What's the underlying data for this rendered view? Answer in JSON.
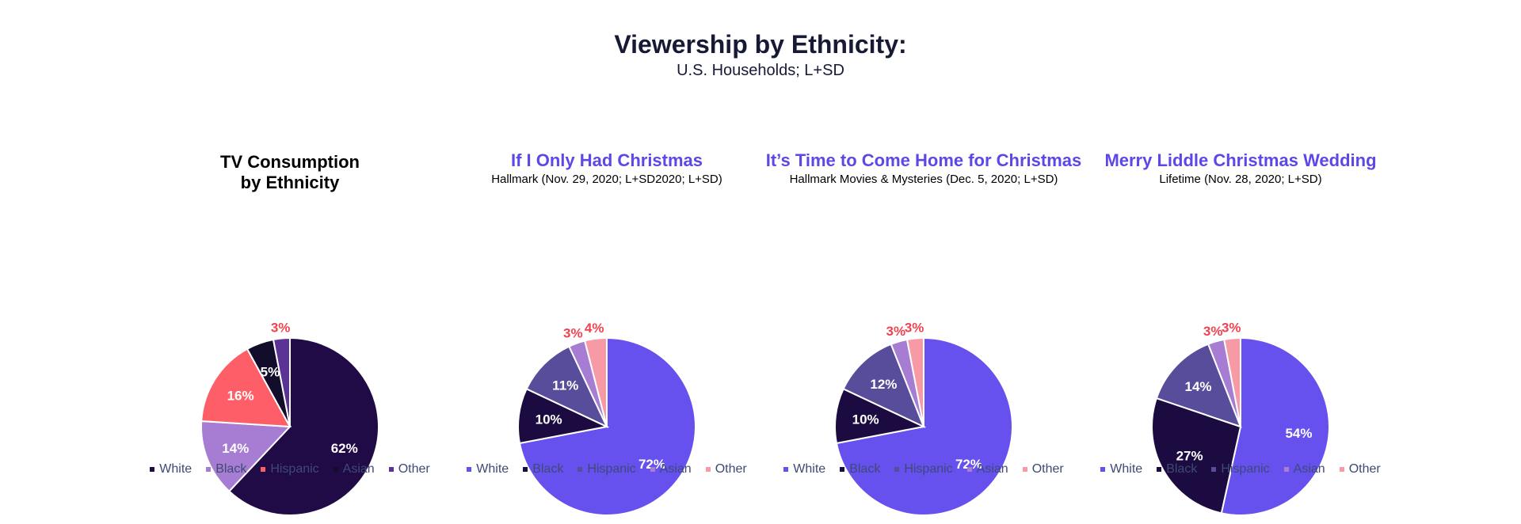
{
  "header": {
    "title": "Viewership by Ethnicity:",
    "subtitle": "U.S. Households; L+SD"
  },
  "chart_data": [
    {
      "type": "pie",
      "title": "TV Consumption\nby Ethnicity",
      "subtitle": "",
      "categories": [
        "White",
        "Black",
        "Hispanic",
        "Asian",
        "Other"
      ],
      "values": [
        62,
        14,
        16,
        5,
        3
      ],
      "labels": [
        "62%",
        "14%",
        "16%",
        "5%",
        "3%"
      ],
      "colors": [
        "#200b47",
        "#a77dd3",
        "#fe5e68",
        "#130d2c",
        "#5a3394"
      ],
      "label_colors": [
        "#ffffff",
        "#ffffff",
        "#ffffff",
        "#ffffff",
        "#f0434f"
      ],
      "outside_labels": [
        false,
        false,
        false,
        false,
        true
      ],
      "legend_position": "bottom"
    },
    {
      "type": "pie",
      "title": "If I Only Had Christmas",
      "subtitle": "Hallmark (Nov. 29, 2020; L+SD2020; L+SD)",
      "categories": [
        "White",
        "Black",
        "Hispanic",
        "Asian",
        "Other"
      ],
      "values": [
        72,
        10,
        11,
        3,
        4
      ],
      "labels": [
        "72%",
        "10%",
        "11%",
        "3%",
        "4%"
      ],
      "colors": [
        "#6651ef",
        "#1c0b40",
        "#574d9a",
        "#a77dd3",
        "#f79aa5"
      ],
      "label_colors": [
        "#ffffff",
        "#ffffff",
        "#ffffff",
        "#f0434f",
        "#f0434f"
      ],
      "outside_labels": [
        false,
        false,
        false,
        true,
        true
      ],
      "legend_position": "bottom"
    },
    {
      "type": "pie",
      "title": "It’s Time to Come Home for Christmas",
      "subtitle": "Hallmark Movies & Mysteries (Dec. 5, 2020; L+SD)",
      "categories": [
        "White",
        "Black",
        "Hispanic",
        "Asian",
        "Other"
      ],
      "values": [
        72,
        10,
        12,
        3,
        3
      ],
      "labels": [
        "72%",
        "10%",
        "12%",
        "3%",
        "3%"
      ],
      "colors": [
        "#6651ef",
        "#1c0b40",
        "#574d9a",
        "#a77dd3",
        "#f79aa5"
      ],
      "label_colors": [
        "#ffffff",
        "#ffffff",
        "#ffffff",
        "#f0434f",
        "#f0434f"
      ],
      "outside_labels": [
        false,
        false,
        false,
        true,
        true
      ],
      "legend_position": "bottom"
    },
    {
      "type": "pie",
      "title": "Merry Liddle Christmas Wedding",
      "subtitle": "Lifetime (Nov. 28, 2020; L+SD)",
      "categories": [
        "White",
        "Black",
        "Hispanic",
        "Asian",
        "Other"
      ],
      "values": [
        54,
        27,
        14,
        3,
        3
      ],
      "labels": [
        "54%",
        "27%",
        "14%",
        "3%",
        "3%"
      ],
      "colors": [
        "#6651ef",
        "#1c0b40",
        "#574d9a",
        "#a77dd3",
        "#f79aa5"
      ],
      "label_colors": [
        "#ffffff",
        "#ffffff",
        "#ffffff",
        "#f0434f",
        "#f0434f"
      ],
      "outside_labels": [
        false,
        false,
        false,
        true,
        true
      ],
      "legend_position": "bottom"
    }
  ]
}
